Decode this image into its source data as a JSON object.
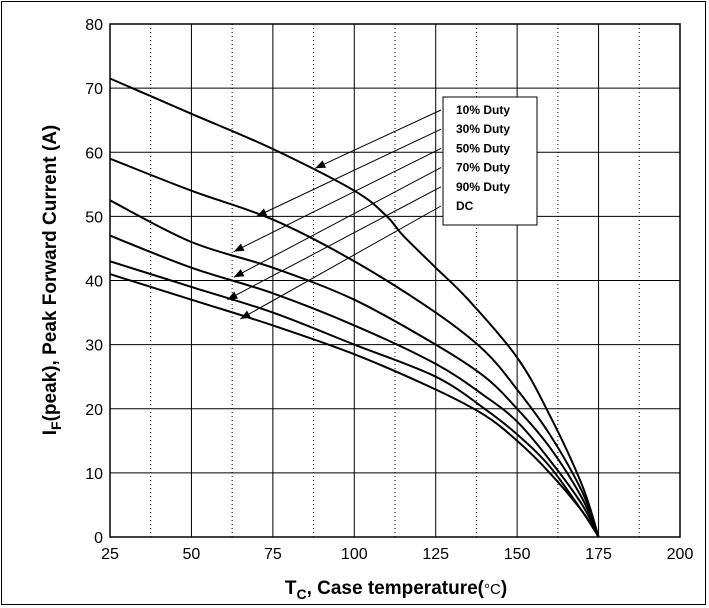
{
  "chart_data": {
    "type": "line",
    "x_axis": {
      "label_main": "T",
      "label_sub": "C",
      "label_rest": ", Case temperature(",
      "label_unit": "°C",
      "label_close": ")",
      "min": 25,
      "max": 200,
      "ticks": [
        "25",
        "50",
        "75",
        "100",
        "125",
        "150",
        "175",
        "200"
      ]
    },
    "y_axis": {
      "label_main": "I",
      "label_sub": "F",
      "label_rest": "(peak), Peak Forward Current (A)",
      "min": 0,
      "max": 80,
      "ticks": [
        "0",
        "10",
        "20",
        "30",
        "40",
        "50",
        "60",
        "70",
        "80"
      ]
    },
    "grid": true,
    "legend_position": "top-right",
    "series": [
      {
        "name": "10% Duty",
        "points": [
          [
            25,
            71.5
          ],
          [
            50,
            66
          ],
          [
            75,
            60.5
          ],
          [
            100,
            54
          ],
          [
            110,
            50
          ],
          [
            115,
            47
          ],
          [
            125,
            42
          ],
          [
            135,
            37
          ],
          [
            150,
            28
          ],
          [
            160,
            19
          ],
          [
            170,
            8
          ],
          [
            175,
            0
          ]
        ]
      },
      {
        "name": "30% Duty",
        "points": [
          [
            25,
            59
          ],
          [
            50,
            54
          ],
          [
            75,
            49.5
          ],
          [
            100,
            43
          ],
          [
            125,
            35
          ],
          [
            140,
            29
          ],
          [
            150,
            23
          ],
          [
            160,
            16
          ],
          [
            170,
            7
          ],
          [
            175,
            0
          ]
        ]
      },
      {
        "name": "50% Duty",
        "points": [
          [
            25,
            52.5
          ],
          [
            50,
            46
          ],
          [
            75,
            42
          ],
          [
            100,
            37
          ],
          [
            125,
            30
          ],
          [
            140,
            25
          ],
          [
            150,
            20
          ],
          [
            160,
            14
          ],
          [
            170,
            6
          ],
          [
            175,
            0
          ]
        ]
      },
      {
        "name": "70% Duty",
        "points": [
          [
            25,
            47
          ],
          [
            50,
            42
          ],
          [
            75,
            38
          ],
          [
            100,
            33
          ],
          [
            125,
            27
          ],
          [
            140,
            22
          ],
          [
            150,
            18
          ],
          [
            160,
            12
          ],
          [
            170,
            5
          ],
          [
            175,
            0
          ]
        ]
      },
      {
        "name": "90% Duty",
        "points": [
          [
            25,
            43
          ],
          [
            50,
            39
          ],
          [
            75,
            35
          ],
          [
            100,
            30
          ],
          [
            125,
            25
          ],
          [
            140,
            20
          ],
          [
            150,
            16
          ],
          [
            160,
            11
          ],
          [
            170,
            4
          ],
          [
            175,
            0
          ]
        ]
      },
      {
        "name": "DC",
        "points": [
          [
            25,
            41
          ],
          [
            50,
            37
          ],
          [
            75,
            33
          ],
          [
            100,
            28.5
          ],
          [
            125,
            23
          ],
          [
            140,
            19
          ],
          [
            150,
            15
          ],
          [
            160,
            10
          ],
          [
            170,
            4
          ],
          [
            175,
            0
          ]
        ]
      }
    ],
    "arrows": [
      {
        "series": "10% Duty",
        "target": [
          88,
          57.5
        ]
      },
      {
        "series": "30% Duty",
        "target": [
          70,
          50
        ]
      },
      {
        "series": "50% Duty",
        "target": [
          63,
          44.5
        ]
      },
      {
        "series": "70% Duty",
        "target": [
          63,
          40.5
        ]
      },
      {
        "series": "90% Duty",
        "target": [
          61,
          37
        ]
      },
      {
        "series": "DC",
        "target": [
          65,
          34
        ]
      }
    ]
  }
}
